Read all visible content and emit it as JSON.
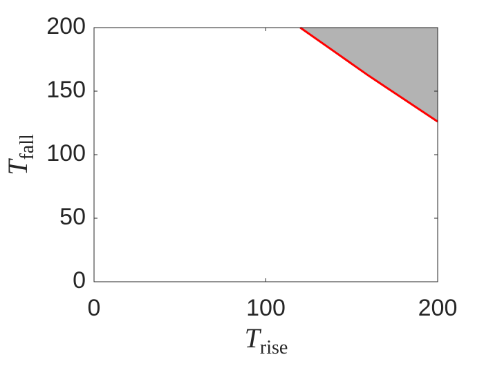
{
  "chart_data": {
    "type": "line",
    "x_label": {
      "main": "T",
      "sub": "rise"
    },
    "y_label": {
      "main": "T",
      "sub": "fall"
    },
    "x": [
      120,
      140,
      160,
      180,
      200
    ],
    "series": [
      {
        "color": "#ff0000",
        "fill": "above",
        "fill_color": "#b3b3b3",
        "values": [
          200,
          181,
          162,
          144,
          126
        ]
      }
    ],
    "xlim": [
      0,
      200
    ],
    "xticks": [
      0,
      100,
      200
    ],
    "ylim": [
      0,
      200
    ],
    "yticks": [
      0,
      50,
      100,
      150,
      200
    ],
    "box": true
  }
}
